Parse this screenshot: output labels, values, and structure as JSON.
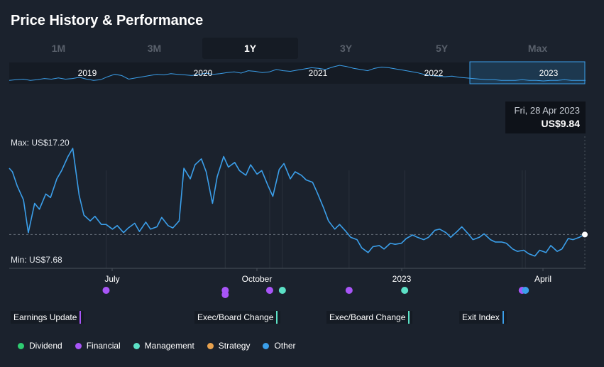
{
  "title": "Price History & Performance",
  "tabs": [
    {
      "label": "1M",
      "active": false
    },
    {
      "label": "3M",
      "active": false
    },
    {
      "label": "1Y",
      "active": true
    },
    {
      "label": "3Y",
      "active": false
    },
    {
      "label": "5Y",
      "active": false
    },
    {
      "label": "Max",
      "active": false
    }
  ],
  "navigator": {
    "years": [
      "2019",
      "2020",
      "2021",
      "2022",
      "2023"
    ],
    "selected": "2023"
  },
  "tooltip": {
    "date": "Fri, 28 Apr 2023",
    "price": "US$9.84"
  },
  "max_label": "Max: US$17.20",
  "min_label": "Min: US$7.68",
  "month_labels": [
    "July",
    "October",
    "2023",
    "April"
  ],
  "event_labels": [
    {
      "text": "Earnings Update",
      "color": "#a855f7"
    },
    {
      "text": "Exec/Board Change",
      "color": "#5ce1c6"
    },
    {
      "text": "Exec/Board Change",
      "color": "#5ce1c6"
    },
    {
      "text": "Exit Index",
      "color": "#3b9fea"
    }
  ],
  "legend": [
    {
      "label": "Dividend",
      "color": "#2ecc71"
    },
    {
      "label": "Financial",
      "color": "#a855f7"
    },
    {
      "label": "Management",
      "color": "#5ce1c6"
    },
    {
      "label": "Strategy",
      "color": "#e8a24e"
    },
    {
      "label": "Other",
      "color": "#3b9fea"
    }
  ],
  "chart_data": {
    "type": "line",
    "x_range": [
      "2022-05-01",
      "2023-04-28"
    ],
    "ylim": [
      7.68,
      17.2
    ],
    "line_color": "#3b9fea",
    "last_value": 9.84,
    "series": [
      {
        "x": [
          "2022-05-01",
          "2022-05-03",
          "2022-05-06",
          "2022-05-10",
          "2022-05-13",
          "2022-05-17",
          "2022-05-20",
          "2022-05-24",
          "2022-05-27",
          "2022-05-31",
          "2022-06-03",
          "2022-06-07",
          "2022-06-10",
          "2022-06-14",
          "2022-06-17",
          "2022-06-21",
          "2022-06-24",
          "2022-06-28",
          "2022-07-01",
          "2022-07-05",
          "2022-07-08",
          "2022-07-12",
          "2022-07-15",
          "2022-07-19",
          "2022-07-22",
          "2022-07-26",
          "2022-07-29",
          "2022-08-02",
          "2022-08-05",
          "2022-08-09",
          "2022-08-12",
          "2022-08-16",
          "2022-08-19",
          "2022-08-23",
          "2022-08-26",
          "2022-08-30",
          "2022-09-02",
          "2022-09-06",
          "2022-09-09",
          "2022-09-13",
          "2022-09-16",
          "2022-09-20",
          "2022-09-23",
          "2022-09-27",
          "2022-09-30",
          "2022-10-04",
          "2022-10-07",
          "2022-10-11",
          "2022-10-14",
          "2022-10-18",
          "2022-10-21",
          "2022-10-25",
          "2022-10-28",
          "2022-11-01",
          "2022-11-04",
          "2022-11-08",
          "2022-11-11",
          "2022-11-15",
          "2022-11-18",
          "2022-11-22",
          "2022-11-25",
          "2022-11-29",
          "2022-12-02",
          "2022-12-06",
          "2022-12-09",
          "2022-12-13",
          "2022-12-16",
          "2022-12-20",
          "2022-12-23",
          "2022-12-27",
          "2022-12-30",
          "2023-01-03",
          "2023-01-06",
          "2023-01-10",
          "2023-01-13",
          "2023-01-17",
          "2023-01-20",
          "2023-01-24",
          "2023-01-27",
          "2023-01-31",
          "2023-02-03",
          "2023-02-07",
          "2023-02-10",
          "2023-02-14",
          "2023-02-17",
          "2023-02-21",
          "2023-02-24",
          "2023-02-28",
          "2023-03-03",
          "2023-03-07",
          "2023-03-10",
          "2023-03-14",
          "2023-03-17",
          "2023-03-21",
          "2023-03-24",
          "2023-03-28",
          "2023-03-31",
          "2023-04-04",
          "2023-04-07",
          "2023-04-11",
          "2023-04-14",
          "2023-04-18",
          "2023-04-21",
          "2023-04-25",
          "2023-04-28"
        ],
        "y": [
          15.5,
          15.2,
          14.0,
          12.8,
          10.0,
          12.5,
          12.0,
          13.3,
          13.0,
          14.6,
          15.3,
          16.5,
          17.2,
          13.2,
          11.5,
          11.0,
          11.4,
          10.7,
          10.7,
          10.3,
          10.6,
          10.0,
          10.4,
          10.8,
          10.1,
          10.9,
          10.3,
          10.5,
          11.3,
          10.6,
          10.4,
          11.0,
          15.5,
          14.6,
          15.8,
          16.3,
          15.2,
          12.5,
          14.8,
          16.5,
          15.6,
          16.0,
          15.3,
          14.9,
          15.8,
          15.0,
          15.3,
          14.0,
          13.1,
          15.4,
          15.9,
          14.6,
          15.2,
          14.9,
          14.5,
          14.3,
          13.4,
          12.1,
          11.0,
          10.3,
          10.7,
          10.1,
          9.6,
          9.4,
          8.7,
          8.3,
          8.8,
          8.9,
          8.6,
          9.1,
          9.0,
          9.1,
          9.5,
          9.8,
          9.6,
          9.4,
          9.6,
          10.2,
          10.3,
          10.0,
          9.6,
          10.1,
          10.5,
          9.9,
          9.4,
          9.6,
          9.9,
          9.4,
          9.2,
          9.2,
          9.1,
          8.6,
          8.4,
          8.5,
          8.2,
          8.0,
          8.5,
          8.3,
          8.9,
          8.4,
          8.6,
          9.5,
          9.4,
          9.6,
          9.84
        ]
      }
    ],
    "navigator": {
      "years": [
        "2019",
        "2020",
        "2021",
        "2022",
        "2023"
      ],
      "values": [
        20,
        21,
        22,
        20,
        21,
        23,
        22,
        24,
        22,
        23,
        25,
        22,
        20,
        21,
        26,
        30,
        28,
        22,
        24,
        26,
        28,
        30,
        29,
        31,
        30,
        29,
        28,
        30,
        32,
        30,
        31,
        33,
        34,
        32,
        36,
        35,
        33,
        34,
        38,
        36,
        35,
        37,
        39,
        41,
        40,
        38,
        42,
        45,
        43,
        40,
        38,
        36,
        40,
        42,
        41,
        39,
        37,
        35,
        33,
        30,
        28,
        27,
        26,
        27,
        25,
        24,
        23,
        22,
        21,
        21,
        20,
        20,
        20,
        21,
        20,
        20,
        19,
        20,
        20,
        21,
        20,
        20,
        20
      ]
    },
    "events": [
      {
        "date": "2022-07-01",
        "category": "Financial"
      },
      {
        "date": "2022-09-14",
        "category": "Financial"
      },
      {
        "date": "2022-09-14",
        "category": "Financial"
      },
      {
        "date": "2022-10-12",
        "category": "Financial"
      },
      {
        "date": "2022-10-20",
        "category": "Management"
      },
      {
        "date": "2022-12-01",
        "category": "Financial"
      },
      {
        "date": "2023-01-05",
        "category": "Management"
      },
      {
        "date": "2023-03-20",
        "category": "Financial"
      },
      {
        "date": "2023-03-22",
        "category": "Other"
      }
    ]
  }
}
